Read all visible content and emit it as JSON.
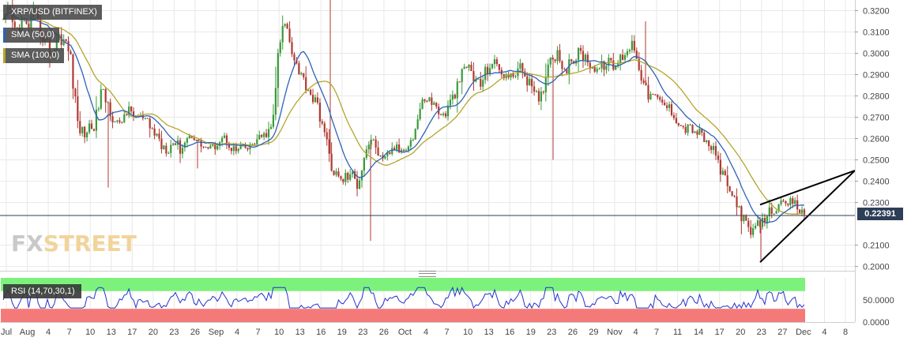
{
  "legend": {
    "title": "XRP/USD (BITFINEX)",
    "sma50": "SMA (50,0)",
    "sma100": "SMA (100,0)",
    "rsi": "RSI (14,70,30,1)"
  },
  "logo": {
    "part1": "FX",
    "part2": "STREET"
  },
  "price_label": "0.22391",
  "colors": {
    "up": "#3a9a3a",
    "down": "#b03a32",
    "sma50": "#2e62b8",
    "sma100": "#b5a52a",
    "rsi_line": "#2233cc",
    "rsi_overbought": "#7cf27c",
    "rsi_oversold": "#f47a7a",
    "price_line": "#2d3e57",
    "grid": "#e8e8e8"
  },
  "chart_data": [
    {
      "type": "candlestick",
      "title": "XRP/USD (BITFINEX)",
      "ylim": [
        0.198,
        0.325
      ],
      "y_ticks": [
        "0.3200",
        "0.3100",
        "0.3000",
        "0.2900",
        "0.2800",
        "0.2700",
        "0.2600",
        "0.2500",
        "0.2400",
        "0.2300",
        "0.2100",
        "0.2000"
      ],
      "x_ticks": [
        "Jul",
        "Aug",
        "4",
        "7",
        "10",
        "13",
        "17",
        "20",
        "23",
        "26",
        "Sep",
        "4",
        "7",
        "10",
        "13",
        "16",
        "19",
        "23",
        "26",
        "Oct",
        "4",
        "7",
        "10",
        "13",
        "16",
        "19",
        "23",
        "26",
        "29",
        "Nov",
        "4",
        "7",
        "11",
        "14",
        "17",
        "20",
        "23",
        "27",
        "Dec",
        "4",
        "8"
      ],
      "last_price": 0.22391,
      "price_path": [
        [
          0.315,
          3
        ],
        [
          0.319,
          12
        ],
        [
          0.31,
          6
        ],
        [
          0.315,
          8
        ],
        [
          0.312,
          7
        ],
        [
          0.318,
          9
        ],
        [
          0.311,
          9
        ],
        [
          0.305,
          8
        ],
        [
          0.3,
          10
        ],
        [
          0.308,
          8
        ],
        [
          0.306,
          7
        ],
        [
          0.299,
          8
        ],
        [
          0.27,
          12
        ],
        [
          0.262,
          9
        ],
        [
          0.265,
          8
        ],
        [
          0.267,
          7
        ],
        [
          0.282,
          8
        ],
        [
          0.277,
          7
        ],
        [
          0.27,
          8
        ],
        [
          0.265,
          7
        ],
        [
          0.273,
          6
        ],
        [
          0.272,
          7
        ],
        [
          0.27,
          6
        ],
        [
          0.269,
          6
        ],
        [
          0.265,
          7
        ],
        [
          0.262,
          8
        ],
        [
          0.257,
          9
        ],
        [
          0.256,
          7
        ],
        [
          0.259,
          6
        ],
        [
          0.255,
          6
        ],
        [
          0.26,
          5
        ],
        [
          0.262,
          5
        ],
        [
          0.258,
          5
        ],
        [
          0.256,
          6
        ],
        [
          0.255,
          5
        ],
        [
          0.258,
          5
        ],
        [
          0.261,
          5
        ],
        [
          0.257,
          5
        ],
        [
          0.254,
          5
        ],
        [
          0.256,
          4
        ],
        [
          0.255,
          4
        ],
        [
          0.258,
          4
        ],
        [
          0.26,
          5
        ],
        [
          0.262,
          4
        ],
        [
          0.265,
          6
        ],
        [
          0.3,
          9
        ],
        [
          0.315,
          10
        ],
        [
          0.305,
          9
        ],
        [
          0.295,
          8
        ],
        [
          0.288,
          7
        ],
        [
          0.283,
          7
        ],
        [
          0.277,
          8
        ],
        [
          0.27,
          8
        ],
        [
          0.255,
          10
        ],
        [
          0.245,
          9
        ],
        [
          0.24,
          8
        ],
        [
          0.242,
          7
        ],
        [
          0.243,
          7
        ],
        [
          0.238,
          6
        ],
        [
          0.252,
          7
        ],
        [
          0.26,
          6
        ],
        [
          0.256,
          6
        ],
        [
          0.248,
          6
        ],
        [
          0.253,
          5
        ],
        [
          0.256,
          5
        ],
        [
          0.254,
          5
        ],
        [
          0.257,
          5
        ],
        [
          0.26,
          5
        ],
        [
          0.272,
          7
        ],
        [
          0.28,
          7
        ],
        [
          0.277,
          6
        ],
        [
          0.274,
          6
        ],
        [
          0.27,
          6
        ],
        [
          0.276,
          6
        ],
        [
          0.282,
          6
        ],
        [
          0.29,
          7
        ],
        [
          0.295,
          7
        ],
        [
          0.288,
          7
        ],
        [
          0.285,
          7
        ],
        [
          0.292,
          7
        ],
        [
          0.296,
          6
        ],
        [
          0.293,
          6
        ],
        [
          0.29,
          6
        ],
        [
          0.288,
          6
        ],
        [
          0.293,
          7
        ],
        [
          0.292,
          6
        ],
        [
          0.286,
          7
        ],
        [
          0.278,
          10
        ],
        [
          0.28,
          8
        ],
        [
          0.295,
          9
        ],
        [
          0.301,
          9
        ],
        [
          0.298,
          8
        ],
        [
          0.292,
          7
        ],
        [
          0.296,
          7
        ],
        [
          0.3,
          7
        ],
        [
          0.299,
          6
        ],
        [
          0.295,
          6
        ],
        [
          0.292,
          6
        ],
        [
          0.294,
          6
        ],
        [
          0.296,
          5
        ],
        [
          0.293,
          6
        ],
        [
          0.298,
          7
        ],
        [
          0.302,
          8
        ],
        [
          0.305,
          9
        ],
        [
          0.295,
          9
        ],
        [
          0.282,
          8
        ],
        [
          0.28,
          7
        ],
        [
          0.278,
          6
        ],
        [
          0.276,
          6
        ],
        [
          0.274,
          6
        ],
        [
          0.27,
          6
        ],
        [
          0.265,
          7
        ],
        [
          0.265,
          6
        ],
        [
          0.264,
          6
        ],
        [
          0.262,
          6
        ],
        [
          0.258,
          6
        ],
        [
          0.255,
          6
        ],
        [
          0.248,
          7
        ],
        [
          0.24,
          7
        ],
        [
          0.234,
          7
        ],
        [
          0.23,
          6
        ],
        [
          0.222,
          7
        ],
        [
          0.215,
          8
        ],
        [
          0.218,
          7
        ],
        [
          0.22,
          6
        ],
        [
          0.225,
          6
        ],
        [
          0.227,
          6
        ],
        [
          0.229,
          5
        ],
        [
          0.228,
          5
        ],
        [
          0.231,
          5
        ],
        [
          0.227,
          5
        ],
        [
          0.224,
          5
        ]
      ],
      "annotations": [
        {
          "type": "trendline",
          "from": [
            0.229,
            "Nov 24"
          ],
          "to": [
            0.245,
            "Dec 9"
          ]
        },
        {
          "type": "trendline",
          "from": [
            0.202,
            "Nov 24"
          ],
          "to": [
            0.245,
            "Dec 9"
          ]
        }
      ]
    },
    {
      "type": "line",
      "title": "RSI (14,70,30,1)",
      "ylim": [
        0,
        100
      ],
      "y_ticks": [
        "50.0000",
        "0.0000"
      ],
      "bands": [
        {
          "from": 70,
          "to": 100,
          "color": "#7cf27c"
        },
        {
          "from": 0,
          "to": 30,
          "color": "#f47a7a"
        }
      ]
    }
  ]
}
